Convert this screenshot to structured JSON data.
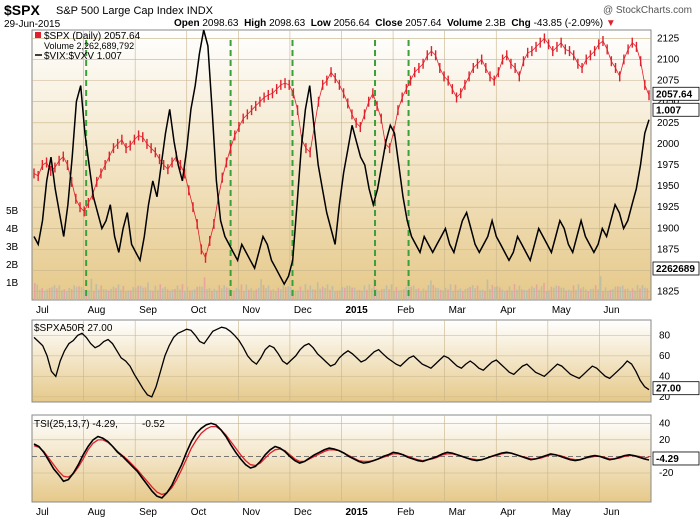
{
  "header": {
    "symbol": "$SPX",
    "name": "S&P 500 Large Cap Index",
    "exchange": "INDX",
    "brand": "@ StockCharts.com",
    "date": "29-Jun-2015",
    "open_label": "Open",
    "open": "2098.63",
    "high_label": "High",
    "high": "2098.63",
    "low_label": "Low",
    "low": "2056.64",
    "close_label": "Close",
    "close": "2057.64",
    "volume_label": "Volume",
    "volume": "2.3B",
    "chg_label": "Chg",
    "chg": "-43.85 (-2.09%)"
  },
  "colors": {
    "price": "#e0202c",
    "vix": "#000000",
    "signal": "#3aa03a",
    "tsi": "#000000",
    "tsi_signal": "#e0202c",
    "panel_top": "#ffffff",
    "panel_bottom": "#e6c98a"
  },
  "legend": {
    "price": "$SPX (Daily) 2057.64",
    "volume": "Volume 2,262,689,792",
    "vix": "$VIX:$VXV 1.007",
    "breadth": "$SPXA50R 27.00",
    "tsi": "TSI(25,13,7) -4.29,",
    "tsi_signal": "-0.52"
  },
  "badges": {
    "price": "2057.64",
    "vix": "1.007",
    "volume": "2262689",
    "breadth": "27.00",
    "tsi": "-4.29"
  },
  "chart_data": [
    {
      "type": "line",
      "panel": "price",
      "x_start": "Jul 2014",
      "x_end": "29-Jun-2015",
      "x_month_labels": [
        "Jul",
        "Aug",
        "Sep",
        "Oct",
        "Nov",
        "Dec",
        "2015",
        "Feb",
        "Mar",
        "Apr",
        "May",
        "Jun"
      ],
      "y_right_ticks": [
        1825,
        1850,
        1875,
        1900,
        1925,
        1950,
        1975,
        2000,
        2025,
        2050,
        2075,
        2100,
        2125
      ],
      "y_left_ticks_volume": [
        "1B",
        "2B",
        "3B",
        "4B",
        "5B"
      ],
      "ylim": [
        1815,
        2135
      ],
      "series": [
        {
          "name": "$SPX (Daily) 2057.64",
          "values": [
            1965,
            1962,
            1975,
            1978,
            1968,
            1972,
            1980,
            1985,
            1975,
            1955,
            1935,
            1925,
            1920,
            1930,
            1940,
            1955,
            1965,
            1975,
            1985,
            1995,
            2000,
            2005,
            1995,
            1998,
            2005,
            2010,
            2008,
            2000,
            1995,
            1990,
            1982,
            1975,
            1970,
            1978,
            1985,
            1975,
            1965,
            1945,
            1925,
            1905,
            1875,
            1865,
            1885,
            1905,
            1935,
            1960,
            1978,
            1995,
            2010,
            2020,
            2030,
            2035,
            2040,
            2045,
            2050,
            2055,
            2058,
            2060,
            2065,
            2070,
            2072,
            2070,
            2060,
            2040,
            2005,
            1995,
            1990,
            2020,
            2050,
            2070,
            2075,
            2085,
            2078,
            2070,
            2060,
            2048,
            2035,
            2025,
            2020,
            2035,
            2050,
            2060,
            2045,
            2030,
            2000,
            1995,
            2015,
            2040,
            2055,
            2065,
            2075,
            2085,
            2090,
            2095,
            2105,
            2110,
            2105,
            2090,
            2080,
            2075,
            2065,
            2055,
            2060,
            2070,
            2080,
            2090,
            2095,
            2100,
            2090,
            2080,
            2075,
            2085,
            2100,
            2105,
            2095,
            2090,
            2080,
            2098,
            2108,
            2110,
            2115,
            2120,
            2125,
            2118,
            2110,
            2115,
            2120,
            2112,
            2110,
            2105,
            2095,
            2090,
            2100,
            2105,
            2110,
            2118,
            2122,
            2112,
            2098,
            2090,
            2080,
            2100,
            2112,
            2120,
            2115,
            2098,
            2070,
            2057.64
          ]
        },
        {
          "name": "$VIX:$VXV 1.007",
          "values": [
            0.86,
            0.85,
            0.88,
            0.93,
            0.96,
            0.92,
            0.89,
            0.86,
            0.9,
            0.96,
            1.03,
            1.05,
            0.99,
            0.95,
            0.91,
            0.89,
            0.87,
            0.88,
            0.9,
            0.86,
            0.84,
            0.87,
            0.89,
            0.85,
            0.84,
            0.83,
            0.86,
            0.9,
            0.93,
            0.91,
            0.95,
            0.99,
            1.02,
            0.98,
            0.95,
            0.93,
            0.97,
            1.02,
            1.05,
            1.09,
            1.12,
            1.1,
            1.02,
            0.93,
            0.88,
            0.86,
            0.85,
            0.84,
            0.83,
            0.85,
            0.84,
            0.83,
            0.82,
            0.84,
            0.86,
            0.85,
            0.83,
            0.82,
            0.81,
            0.8,
            0.81,
            0.83,
            0.9,
            0.97,
            1.02,
            1.05,
            1.0,
            0.95,
            0.92,
            0.89,
            0.87,
            0.85,
            0.9,
            0.94,
            0.97,
            1.0,
            0.98,
            0.96,
            0.95,
            0.92,
            0.9,
            0.92,
            0.95,
            0.98,
            1.0,
            0.99,
            0.95,
            0.91,
            0.88,
            0.86,
            0.85,
            0.84,
            0.86,
            0.85,
            0.84,
            0.85,
            0.86,
            0.87,
            0.85,
            0.84,
            0.86,
            0.88,
            0.89,
            0.87,
            0.85,
            0.84,
            0.85,
            0.86,
            0.88,
            0.86,
            0.85,
            0.84,
            0.83,
            0.84,
            0.86,
            0.85,
            0.84,
            0.83,
            0.85,
            0.87,
            0.86,
            0.85,
            0.84,
            0.86,
            0.88,
            0.87,
            0.85,
            0.84,
            0.86,
            0.88,
            0.86,
            0.85,
            0.84,
            0.85,
            0.87,
            0.86,
            0.88,
            0.9,
            0.89,
            0.87,
            0.88,
            0.9,
            0.92,
            0.95,
            0.99,
            1.007
          ]
        }
      ],
      "vix_ylim": [
        0.78,
        1.12
      ],
      "signal_lines_month_pos": [
        1.05,
        3.85,
        5.05,
        6.65,
        7.3
      ]
    },
    {
      "type": "line",
      "panel": "breadth",
      "series": [
        {
          "name": "$SPXA50R 27.00",
          "values": [
            78,
            74,
            70,
            60,
            45,
            40,
            55,
            65,
            72,
            75,
            80,
            82,
            78,
            72,
            68,
            70,
            74,
            76,
            72,
            65,
            58,
            55,
            50,
            42,
            35,
            28,
            22,
            20,
            30,
            45,
            60,
            70,
            78,
            82,
            84,
            86,
            85,
            80,
            74,
            72,
            78,
            84,
            86,
            88,
            87,
            84,
            80,
            75,
            68,
            60,
            55,
            52,
            58,
            66,
            70,
            68,
            62,
            55,
            52,
            56,
            60,
            66,
            70,
            72,
            68,
            62,
            58,
            54,
            50,
            52,
            58,
            62,
            65,
            62,
            58,
            54,
            56,
            60,
            64,
            66,
            62,
            58,
            55,
            52,
            50,
            54,
            58,
            60,
            56,
            52,
            50,
            48,
            52,
            56,
            60,
            58,
            54,
            50,
            48,
            52,
            55,
            52,
            48,
            46,
            50,
            54,
            56,
            52,
            48,
            44,
            42,
            46,
            50,
            52,
            48,
            44,
            42,
            40,
            44,
            48,
            52,
            50,
            46,
            42,
            40,
            38,
            42,
            46,
            50,
            48,
            44,
            40,
            38,
            42,
            46,
            50,
            55,
            52,
            45,
            36,
            30,
            27.0
          ]
        }
      ],
      "y_ticks": [
        20,
        40,
        60,
        80
      ],
      "ylim": [
        15,
        95
      ]
    },
    {
      "type": "line",
      "panel": "tsi",
      "series": [
        {
          "name": "TSI(25,13,7)",
          "values": [
            15,
            12,
            5,
            -5,
            -15,
            -22,
            -30,
            -28,
            -20,
            -10,
            2,
            12,
            20,
            24,
            22,
            18,
            12,
            5,
            0,
            -6,
            -12,
            -18,
            -26,
            -34,
            -42,
            -48,
            -50,
            -44,
            -35,
            -22,
            -10,
            5,
            18,
            28,
            34,
            38,
            40,
            38,
            32,
            24,
            14,
            5,
            -3,
            -10,
            -14,
            -12,
            -6,
            2,
            8,
            12,
            10,
            6,
            0,
            -5,
            -8,
            -6,
            -2,
            2,
            5,
            8,
            10,
            9,
            7,
            4,
            0,
            -3,
            -6,
            -8,
            -7,
            -5,
            -3,
            0,
            2,
            5,
            4,
            2,
            -1,
            -3,
            -5,
            -6,
            -4,
            -2,
            0,
            3,
            5,
            4,
            2,
            0,
            -2,
            -4,
            -5,
            -4,
            -2,
            0,
            2,
            4,
            5,
            4,
            2,
            0,
            -2,
            -4,
            -3,
            -1,
            1,
            3,
            2,
            0,
            -2,
            -4,
            -5,
            -4,
            -2,
            0,
            1,
            0,
            -2,
            -4,
            -3,
            -1,
            1,
            2,
            1,
            -1,
            -3,
            -4.29
          ]
        },
        {
          "name": "signal",
          "values": [
            13,
            11,
            6,
            -2,
            -10,
            -18,
            -24,
            -25,
            -21,
            -13,
            -3,
            8,
            16,
            20,
            20,
            17,
            12,
            6,
            1,
            -4,
            -10,
            -16,
            -23,
            -30,
            -37,
            -43,
            -46,
            -44,
            -38,
            -28,
            -16,
            -3,
            10,
            20,
            28,
            33,
            36,
            36,
            32,
            26,
            18,
            10,
            2,
            -5,
            -10,
            -11,
            -8,
            -2,
            4,
            8,
            9,
            7,
            2,
            -3,
            -6,
            -6,
            -3,
            0,
            3,
            6,
            8,
            8,
            7,
            4,
            1,
            -2,
            -5,
            -6,
            -6,
            -5,
            -3,
            -1,
            1,
            3,
            3,
            2,
            0,
            -2,
            -4,
            -5,
            -4,
            -3,
            -1,
            2,
            3,
            3,
            2,
            0,
            -2,
            -3,
            -4,
            -4,
            -2,
            0,
            1,
            3,
            4,
            4,
            2,
            0,
            -1,
            -3,
            -3,
            -2,
            0,
            2,
            2,
            1,
            -1,
            -3,
            -4,
            -4,
            -2,
            -1,
            0,
            0,
            -1,
            -3,
            -3,
            -2,
            0,
            1,
            1,
            0,
            -2,
            -0.52
          ]
        }
      ],
      "y_ticks": [
        -20,
        0,
        20,
        40
      ],
      "ylim": [
        -55,
        50
      ]
    }
  ]
}
